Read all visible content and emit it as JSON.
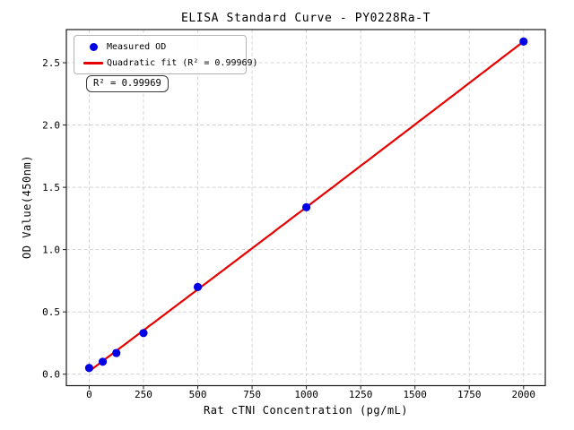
{
  "figure": {
    "background": "#ffffff"
  },
  "chart_data": {
    "type": "scatter",
    "title": "ELISA Standard Curve - PY0228Ra-T",
    "xlabel": "Rat cTNⅠ Concentration (pg/mL)",
    "ylabel": "OD Value(450nm)",
    "xlim": [
      -105,
      2100
    ],
    "ylim": [
      -0.092,
      2.766
    ],
    "xticks": [
      0,
      250,
      500,
      750,
      1000,
      1250,
      1500,
      1750,
      2000
    ],
    "yticks": [
      0.0,
      0.5,
      1.0,
      1.5,
      2.0,
      2.5
    ],
    "grid": true,
    "grid_style": "dashed",
    "legend_position": "upper left",
    "series": [
      {
        "name": "Measured OD",
        "kind": "scatter",
        "color": "#0000e6",
        "x": [
          0,
          62.5,
          125,
          250,
          500,
          1000,
          2000
        ],
        "y": [
          0.05,
          0.1,
          0.17,
          0.33,
          0.7,
          1.34,
          2.67
        ]
      },
      {
        "name": "Quadratic fit (R² = 0.99969)",
        "kind": "line",
        "color": "#e60000",
        "fit": "quadratic",
        "x_range": [
          0,
          2000
        ],
        "r_squared": 0.99969
      }
    ],
    "annotation": {
      "text": "R² = 0.99969"
    }
  },
  "colors": {
    "grid": "#cccccc",
    "spine": "#1a1a1a",
    "scatter": "#0000e6",
    "fit_line": "#e60000"
  }
}
